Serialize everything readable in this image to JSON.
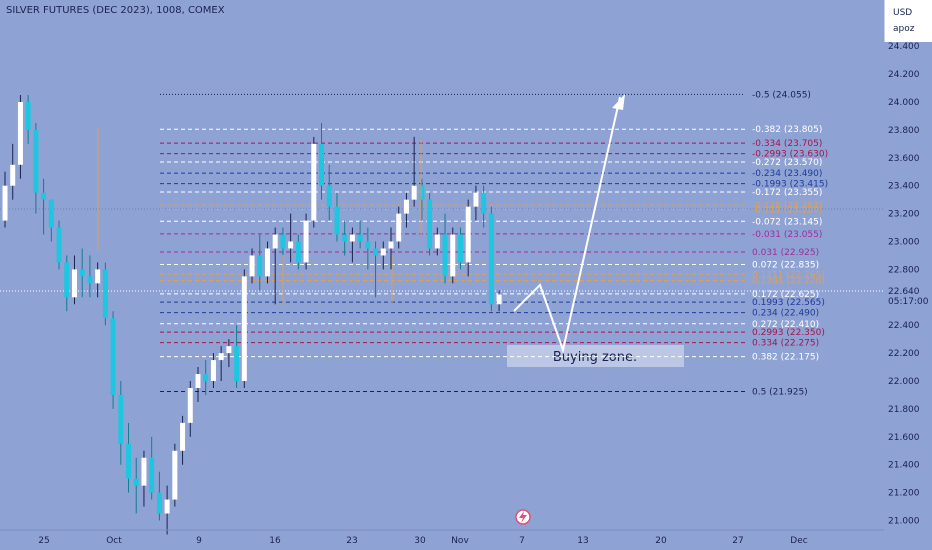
{
  "title": "SILVER FUTURES (DEC 2023), 1008, COMEX",
  "currency": "USD",
  "unit_label": "apoz",
  "colors": {
    "bg": "#8fa2d4",
    "up": "#ffffff",
    "down": "#1fc6df",
    "wick": "#1a2350",
    "fib_dark": "#1a2350",
    "fib_white": "#ffffff",
    "fib_red": "#a4164c",
    "fib_blue": "#1f3d9a",
    "fib_purple": "#9c2f9c",
    "fib_orange": "#e0a050",
    "arrow": "#ffffff"
  },
  "buying_zone_label": "Buying zone.",
  "price_tag": {
    "value": "22.640",
    "time": "05:17:00"
  },
  "icon": "lightning-icon",
  "chart_data": {
    "type": "candlestick",
    "y_ticks": [
      "24.400",
      "24.200",
      "24.000",
      "23.800",
      "23.600",
      "23.400",
      "23.200",
      "23.000",
      "22.800",
      "22.600",
      "22.400",
      "22.200",
      "22.000",
      "21.800",
      "21.600",
      "21.400",
      "21.200",
      "21.000"
    ],
    "x_ticks": [
      "25",
      "Oct",
      "9",
      "16",
      "23",
      "30",
      "Nov",
      "7",
      "13",
      "20",
      "27",
      "Dec"
    ],
    "fib_levels": [
      {
        "label": "-0.5 (24.055)",
        "price": 24.055,
        "color": "dark",
        "style": "dotted"
      },
      {
        "label": "-0.382 (23.805)",
        "price": 23.805,
        "color": "white",
        "style": "dashed"
      },
      {
        "label": "-0.334 (23.705)",
        "price": 23.705,
        "color": "red",
        "style": "dashed"
      },
      {
        "label": "-0.2993 (23.630)",
        "price": 23.63,
        "color": "red",
        "style": "dashed"
      },
      {
        "label": "-0.272 (23.570)",
        "price": 23.57,
        "color": "white",
        "style": "dashed"
      },
      {
        "label": "-0.234 (23.490)",
        "price": 23.49,
        "color": "blue",
        "style": "dashed"
      },
      {
        "label": "-0.1993 (23.415)",
        "price": 23.415,
        "color": "blue",
        "style": "dashed"
      },
      {
        "label": "-0.172 (23.355)",
        "price": 23.355,
        "color": "white",
        "style": "dashed"
      },
      {
        "label": "-0.128 (23.262)",
        "price": 23.262,
        "color": "orange",
        "style": "dashed"
      },
      {
        "label": "-0.111 (23.229)",
        "price": 23.229,
        "color": "orange",
        "style": "dashed"
      },
      {
        "label": "-0.072 (23.145)",
        "price": 23.145,
        "color": "white",
        "style": "dashed"
      },
      {
        "label": "-0.031 (23.055)",
        "price": 23.055,
        "color": "purple",
        "style": "dashed"
      },
      {
        "label": "0.031 (22.925)",
        "price": 22.925,
        "color": "purple",
        "style": "dashed"
      },
      {
        "label": "0.072 (22.835)",
        "price": 22.835,
        "color": "white",
        "style": "dashed"
      },
      {
        "label": "0.1111 (22.765)",
        "price": 22.765,
        "color": "orange",
        "style": "dashed"
      },
      {
        "label": "0.1281 (22.720)",
        "price": 22.72,
        "color": "orange",
        "style": "dashed"
      },
      {
        "label": "0.172 (22.625)",
        "price": 22.625,
        "color": "white",
        "style": "dashed"
      },
      {
        "label": "0.1993 (22.565)",
        "price": 22.565,
        "color": "blue",
        "style": "dashed"
      },
      {
        "label": "0.234 (22.490)",
        "price": 22.49,
        "color": "blue",
        "style": "dashed"
      },
      {
        "label": "0.272 (22.410)",
        "price": 22.41,
        "color": "white",
        "style": "dashed"
      },
      {
        "label": "0.2993 (22.350)",
        "price": 22.35,
        "color": "red",
        "style": "dashed"
      },
      {
        "label": "0.334 (22.275)",
        "price": 22.275,
        "color": "red",
        "style": "dashed"
      },
      {
        "label": "0.382 (22.175)",
        "price": 22.175,
        "color": "white",
        "style": "dashed"
      },
      {
        "label": "0.5 (21.925)",
        "price": 21.925,
        "color": "dark",
        "style": "dashed"
      }
    ],
    "candles": [
      {
        "o": 23.15,
        "h": 23.5,
        "l": 23.1,
        "c": 23.4
      },
      {
        "o": 23.4,
        "h": 23.7,
        "l": 23.3,
        "c": 23.55
      },
      {
        "o": 23.55,
        "h": 24.05,
        "l": 23.45,
        "c": 24.0
      },
      {
        "o": 24.0,
        "h": 24.05,
        "l": 23.7,
        "c": 23.8
      },
      {
        "o": 23.8,
        "h": 23.85,
        "l": 23.2,
        "c": 23.35
      },
      {
        "o": 23.35,
        "h": 23.45,
        "l": 23.05,
        "c": 23.3
      },
      {
        "o": 23.3,
        "h": 23.3,
        "l": 23.0,
        "c": 23.1
      },
      {
        "o": 23.1,
        "h": 23.15,
        "l": 22.8,
        "c": 22.85
      },
      {
        "o": 22.85,
        "h": 22.9,
        "l": 22.5,
        "c": 22.6
      },
      {
        "o": 22.6,
        "h": 22.9,
        "l": 22.55,
        "c": 22.8
      },
      {
        "o": 22.8,
        "h": 22.95,
        "l": 22.6,
        "c": 22.75
      },
      {
        "o": 22.75,
        "h": 22.9,
        "l": 22.6,
        "c": 22.7
      },
      {
        "o": 22.7,
        "h": 22.85,
        "l": 22.6,
        "c": 22.8
      },
      {
        "o": 22.8,
        "h": 22.85,
        "l": 22.4,
        "c": 22.45
      },
      {
        "o": 22.45,
        "h": 22.5,
        "l": 21.8,
        "c": 21.9
      },
      {
        "o": 21.9,
        "h": 22.0,
        "l": 21.4,
        "c": 21.55
      },
      {
        "o": 21.55,
        "h": 21.7,
        "l": 21.2,
        "c": 21.3
      },
      {
        "o": 21.3,
        "h": 21.45,
        "l": 21.05,
        "c": 21.25
      },
      {
        "o": 21.25,
        "h": 21.5,
        "l": 21.1,
        "c": 21.45
      },
      {
        "o": 21.45,
        "h": 21.6,
        "l": 21.15,
        "c": 21.2
      },
      {
        "o": 21.2,
        "h": 21.35,
        "l": 21.0,
        "c": 21.05
      },
      {
        "o": 21.05,
        "h": 21.25,
        "l": 20.9,
        "c": 21.15
      },
      {
        "o": 21.15,
        "h": 21.55,
        "l": 21.1,
        "c": 21.5
      },
      {
        "o": 21.5,
        "h": 21.75,
        "l": 21.4,
        "c": 21.7
      },
      {
        "o": 21.7,
        "h": 22.0,
        "l": 21.6,
        "c": 21.95
      },
      {
        "o": 21.95,
        "h": 22.1,
        "l": 21.85,
        "c": 22.05
      },
      {
        "o": 22.05,
        "h": 22.15,
        "l": 21.9,
        "c": 22.0
      },
      {
        "o": 22.0,
        "h": 22.2,
        "l": 21.95,
        "c": 22.15
      },
      {
        "o": 22.15,
        "h": 22.25,
        "l": 22.0,
        "c": 22.2
      },
      {
        "o": 22.2,
        "h": 22.3,
        "l": 22.1,
        "c": 22.25
      },
      {
        "o": 22.25,
        "h": 22.4,
        "l": 21.95,
        "c": 22.0
      },
      {
        "o": 22.0,
        "h": 22.8,
        "l": 21.95,
        "c": 22.75
      },
      {
        "o": 22.75,
        "h": 22.95,
        "l": 22.7,
        "c": 22.9
      },
      {
        "o": 22.9,
        "h": 23.05,
        "l": 22.65,
        "c": 22.75
      },
      {
        "o": 22.75,
        "h": 23.0,
        "l": 22.7,
        "c": 22.95
      },
      {
        "o": 22.95,
        "h": 23.1,
        "l": 22.55,
        "c": 23.05
      },
      {
        "o": 23.05,
        "h": 23.1,
        "l": 22.85,
        "c": 22.95
      },
      {
        "o": 22.95,
        "h": 23.2,
        "l": 22.85,
        "c": 23.0
      },
      {
        "o": 23.0,
        "h": 23.05,
        "l": 22.8,
        "c": 22.85
      },
      {
        "o": 22.85,
        "h": 23.2,
        "l": 22.8,
        "c": 23.15
      },
      {
        "o": 23.15,
        "h": 23.75,
        "l": 23.1,
        "c": 23.7
      },
      {
        "o": 23.7,
        "h": 23.85,
        "l": 23.3,
        "c": 23.4
      },
      {
        "o": 23.4,
        "h": 23.55,
        "l": 23.15,
        "c": 23.25
      },
      {
        "o": 23.25,
        "h": 23.35,
        "l": 23.0,
        "c": 23.05
      },
      {
        "o": 23.05,
        "h": 23.15,
        "l": 22.9,
        "c": 23.0
      },
      {
        "o": 23.0,
        "h": 23.1,
        "l": 22.85,
        "c": 23.05
      },
      {
        "o": 23.05,
        "h": 23.15,
        "l": 22.95,
        "c": 23.0
      },
      {
        "o": 23.0,
        "h": 23.1,
        "l": 22.8,
        "c": 22.95
      },
      {
        "o": 22.95,
        "h": 23.0,
        "l": 22.6,
        "c": 22.9
      },
      {
        "o": 22.9,
        "h": 23.0,
        "l": 22.8,
        "c": 22.95
      },
      {
        "o": 22.95,
        "h": 23.1,
        "l": 22.8,
        "c": 23.0
      },
      {
        "o": 23.0,
        "h": 23.25,
        "l": 22.95,
        "c": 23.2
      },
      {
        "o": 23.2,
        "h": 23.35,
        "l": 23.1,
        "c": 23.3
      },
      {
        "o": 23.3,
        "h": 23.75,
        "l": 23.25,
        "c": 23.4
      },
      {
        "o": 23.4,
        "h": 23.45,
        "l": 23.15,
        "c": 23.3
      },
      {
        "o": 23.3,
        "h": 23.35,
        "l": 22.9,
        "c": 22.95
      },
      {
        "o": 22.95,
        "h": 23.1,
        "l": 22.9,
        "c": 23.05
      },
      {
        "o": 23.05,
        "h": 23.2,
        "l": 22.7,
        "c": 22.75
      },
      {
        "o": 22.75,
        "h": 23.1,
        "l": 22.7,
        "c": 23.05
      },
      {
        "o": 23.05,
        "h": 23.1,
        "l": 22.8,
        "c": 22.85
      },
      {
        "o": 22.85,
        "h": 23.3,
        "l": 22.75,
        "c": 23.25
      },
      {
        "o": 23.25,
        "h": 23.4,
        "l": 23.15,
        "c": 23.35
      },
      {
        "o": 23.35,
        "h": 23.4,
        "l": 23.1,
        "c": 23.2
      },
      {
        "o": 23.2,
        "h": 23.25,
        "l": 22.5,
        "c": 22.55
      },
      {
        "o": 22.55,
        "h": 22.65,
        "l": 22.5,
        "c": 22.62
      }
    ]
  }
}
